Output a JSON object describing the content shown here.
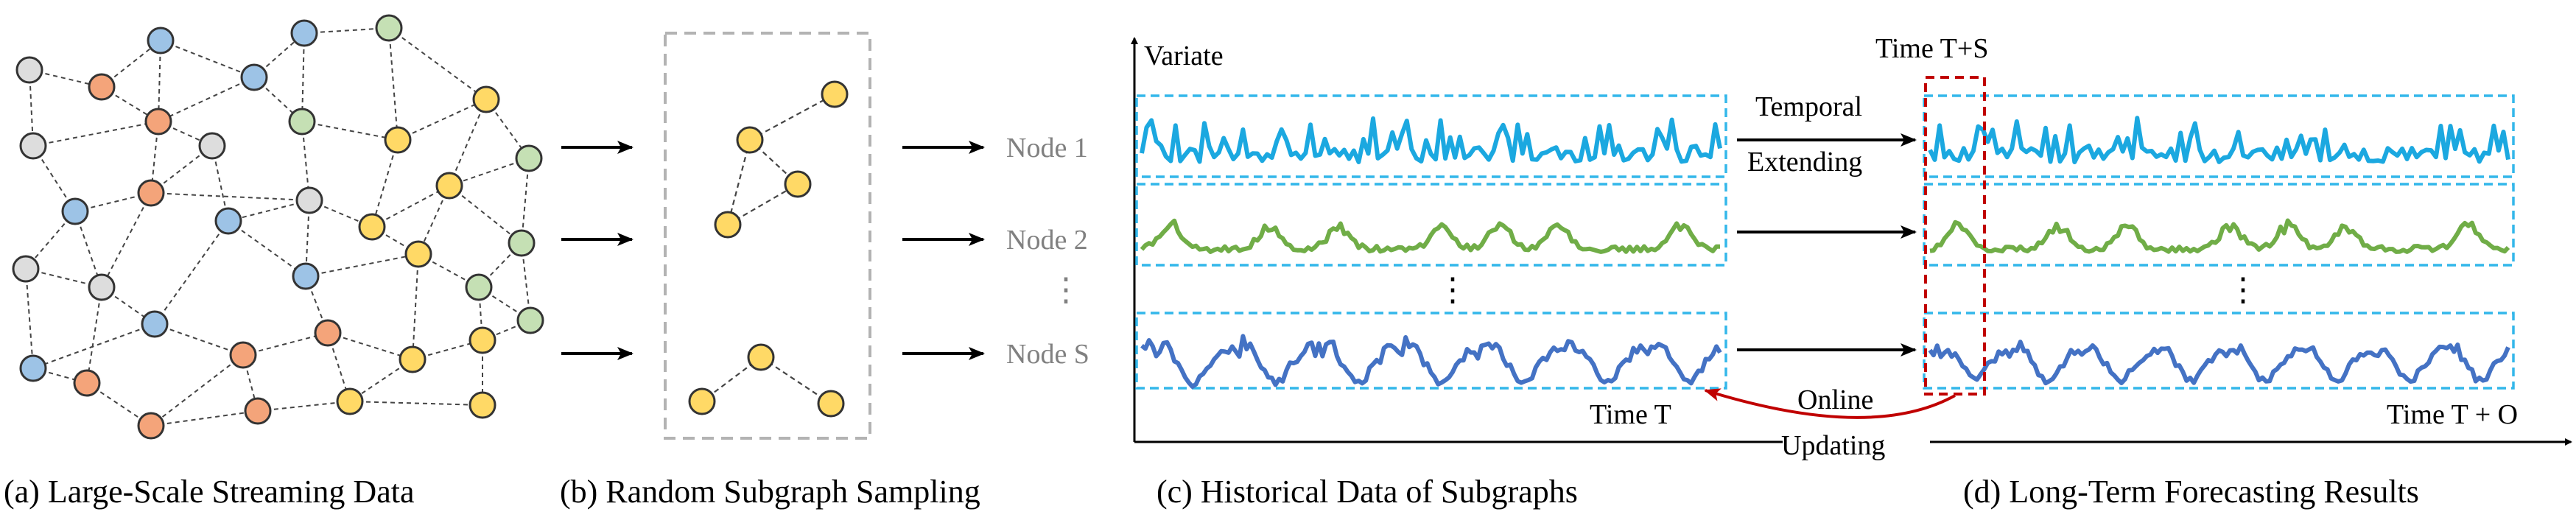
{
  "captions": {
    "a": "(a) Large-Scale Streaming Data",
    "b": "(b) Random Subgraph Sampling",
    "c": "(c) Historical Data of Subgraphs",
    "d": "(d) Long-Term Forecasting Results"
  },
  "sampling": {
    "node_labels": [
      "Node 1",
      "Node 2",
      "Node S"
    ],
    "ellipsis": "⋮"
  },
  "historical": {
    "y_label": "Variate",
    "time_label": "Time T"
  },
  "transition": {
    "temporal_line1": "Temporal",
    "temporal_line2": "Extending",
    "online_line1": "Online",
    "online_line2": "Updating"
  },
  "forecast": {
    "window_label": "Time T+S",
    "time_label": "Time T + O"
  },
  "colors": {
    "gray_node": "#dddddd",
    "orange_node": "#f4a47a",
    "blue_node": "#9dc3e6",
    "green_node": "#c5e0b4",
    "yellow_node": "#ffd966",
    "series_1": "#1ba8e0",
    "series_2": "#70ad47",
    "series_3": "#4472c4",
    "box_border": "#33b7ea",
    "window_border": "#c00000",
    "label_gray": "#808080"
  }
}
